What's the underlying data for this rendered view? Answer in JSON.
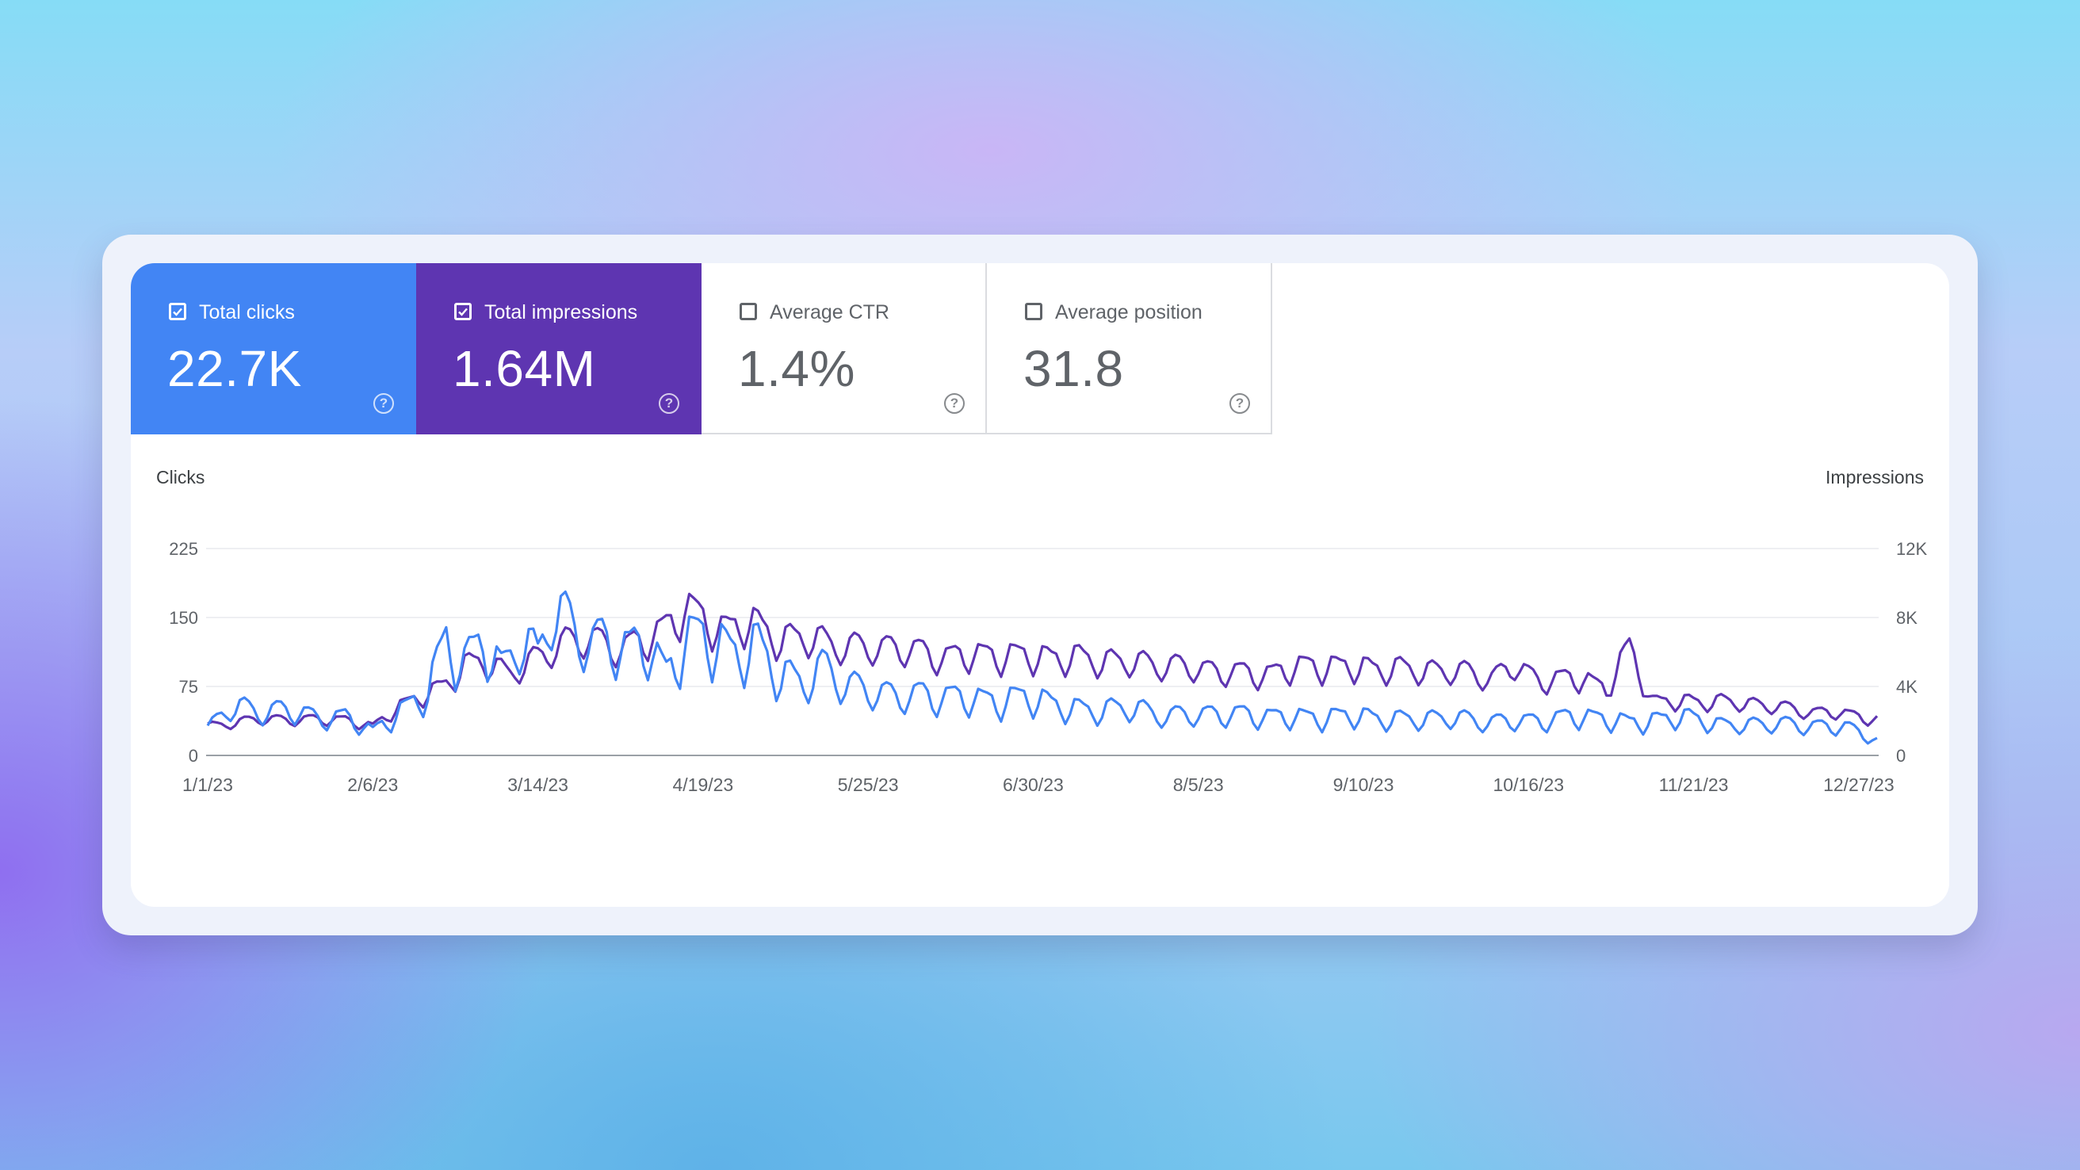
{
  "metrics": [
    {
      "label": "Total clicks",
      "value": "22.7K",
      "checked": true,
      "color": "#4285f4"
    },
    {
      "label": "Total impressions",
      "value": "1.64M",
      "checked": true,
      "color": "#5e35b1"
    },
    {
      "label": "Average CTR",
      "value": "1.4%",
      "checked": false
    },
    {
      "label": "Average position",
      "value": "31.8",
      "checked": false
    }
  ],
  "help_icon": "help-circle-icon",
  "chart_data": {
    "type": "line",
    "y_left_label": "Clicks",
    "y_right_label": "Impressions",
    "y_left_ticks": [
      "0",
      "75",
      "150",
      "225"
    ],
    "y_right_ticks": [
      "0",
      "4K",
      "8K",
      "12K"
    ],
    "y_left_range": [
      0,
      225
    ],
    "y_right_range": [
      0,
      12000
    ],
    "x_ticks": [
      "1/1/23",
      "2/6/23",
      "3/14/23",
      "4/19/23",
      "5/25/23",
      "6/30/23",
      "8/5/23",
      "9/10/23",
      "10/16/23",
      "11/21/23",
      "12/27/23"
    ],
    "grid": true,
    "series": [
      {
        "name": "Clicks",
        "axis": "left",
        "color": "#4285f4",
        "anchors": [
          [
            0,
            25
          ],
          [
            5,
            52
          ],
          [
            12,
            42
          ],
          [
            18,
            48
          ],
          [
            24,
            36
          ],
          [
            30,
            40
          ],
          [
            36,
            24
          ],
          [
            42,
            45
          ],
          [
            48,
            62
          ],
          [
            52,
            120
          ],
          [
            56,
            90
          ],
          [
            60,
            118
          ],
          [
            64,
            85
          ],
          [
            68,
            120
          ],
          [
            72,
            95
          ],
          [
            75,
            155
          ],
          [
            80,
            125
          ],
          [
            84,
            110
          ],
          [
            88,
            120
          ],
          [
            92,
            105
          ],
          [
            96,
            112
          ],
          [
            100,
            82
          ],
          [
            104,
            115
          ],
          [
            110,
            118
          ],
          [
            115,
            102
          ],
          [
            120,
            108
          ],
          [
            125,
            82
          ],
          [
            130,
            72
          ],
          [
            135,
            90
          ],
          [
            140,
            68
          ],
          [
            145,
            65
          ],
          [
            150,
            60
          ],
          [
            160,
            60
          ],
          [
            170,
            55
          ],
          [
            180,
            58
          ],
          [
            190,
            45
          ],
          [
            200,
            48
          ],
          [
            210,
            40
          ],
          [
            220,
            42
          ],
          [
            230,
            40
          ],
          [
            240,
            38
          ],
          [
            250,
            40
          ],
          [
            260,
            36
          ],
          [
            270,
            38
          ],
          [
            280,
            34
          ],
          [
            290,
            35
          ],
          [
            300,
            40
          ],
          [
            310,
            33
          ],
          [
            320,
            38
          ],
          [
            325,
            38
          ],
          [
            330,
            30
          ],
          [
            340,
            32
          ],
          [
            350,
            30
          ],
          [
            358,
            28
          ],
          [
            364,
            15
          ]
        ],
        "amp_pct": 30
      },
      {
        "name": "Impressions",
        "axis": "right",
        "color": "#5e35b1",
        "anchors": [
          [
            0,
            1600
          ],
          [
            10,
            2000
          ],
          [
            20,
            2000
          ],
          [
            30,
            2000
          ],
          [
            36,
            1600
          ],
          [
            42,
            2800
          ],
          [
            48,
            3400
          ],
          [
            52,
            4000
          ],
          [
            56,
            5000
          ],
          [
            60,
            5200
          ],
          [
            66,
            4600
          ],
          [
            72,
            5400
          ],
          [
            78,
            6400
          ],
          [
            84,
            6400
          ],
          [
            90,
            6000
          ],
          [
            96,
            6400
          ],
          [
            100,
            7200
          ],
          [
            104,
            8200
          ],
          [
            108,
            7600
          ],
          [
            112,
            7000
          ],
          [
            118,
            7400
          ],
          [
            125,
            6500
          ],
          [
            132,
            6500
          ],
          [
            140,
            6000
          ],
          [
            150,
            6000
          ],
          [
            160,
            5500
          ],
          [
            170,
            5600
          ],
          [
            180,
            5500
          ],
          [
            190,
            5400
          ],
          [
            200,
            5200
          ],
          [
            210,
            5000
          ],
          [
            220,
            4700
          ],
          [
            230,
            4500
          ],
          [
            240,
            5000
          ],
          [
            250,
            4900
          ],
          [
            260,
            4800
          ],
          [
            270,
            4700
          ],
          [
            275,
            4600
          ],
          [
            280,
            4300
          ],
          [
            285,
            5000
          ],
          [
            290,
            4200
          ],
          [
            300,
            4300
          ],
          [
            305,
            3700
          ],
          [
            310,
            6000
          ],
          [
            315,
            3000
          ],
          [
            320,
            3000
          ],
          [
            330,
            3000
          ],
          [
            340,
            2800
          ],
          [
            350,
            2400
          ],
          [
            355,
            2400
          ],
          [
            364,
            2000
          ]
        ],
        "amp_pct": 16
      }
    ]
  }
}
